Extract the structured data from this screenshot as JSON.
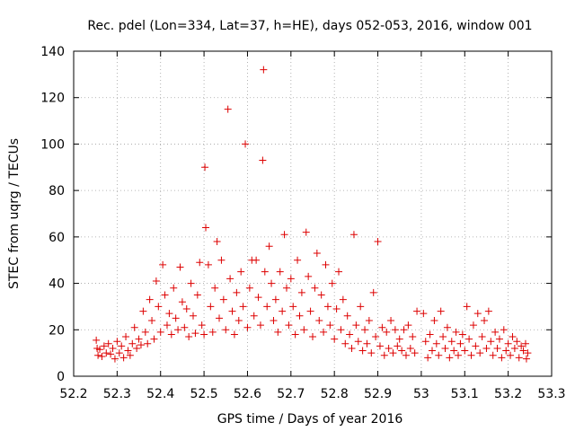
{
  "chart_data": {
    "type": "scatter",
    "title": "Rec. pdel (Lon=334, Lat=37, h=HE), days 052-053, 2016, window 001",
    "xlabel": "GPS time / Days of year 2016",
    "ylabel": "STEC from uqrg / TECUs",
    "xlim": [
      52.2,
      53.3
    ],
    "ylim": [
      0,
      140
    ],
    "xticks": [
      52.2,
      52.3,
      52.4,
      52.5,
      52.6,
      52.7,
      52.8,
      52.9,
      53,
      53.1,
      53.2,
      53.3
    ],
    "xtick_labels": [
      "52.2",
      "52.3",
      "52.4",
      "52.5",
      "52.6",
      "52.7",
      "52.8",
      "52.9",
      "53",
      "53.1",
      "53.2",
      "53.3"
    ],
    "yticks": [
      0,
      20,
      40,
      60,
      80,
      100,
      120,
      140
    ],
    "ytick_labels": [
      "0",
      "20",
      "40",
      "60",
      "80",
      "100",
      "120",
      "140"
    ],
    "grid": true,
    "marker": "+",
    "color": "#dd0000",
    "series": [
      {
        "name": "STEC",
        "points": [
          [
            52.252,
            15.5
          ],
          [
            52.254,
            12.0
          ],
          [
            52.256,
            9.0
          ],
          [
            52.26,
            11.5
          ],
          [
            52.265,
            8.5
          ],
          [
            52.27,
            13.0
          ],
          [
            52.275,
            10.0
          ],
          [
            52.28,
            14.0
          ],
          [
            52.285,
            9.5
          ],
          [
            52.29,
            12.0
          ],
          [
            52.295,
            7.5
          ],
          [
            52.3,
            15.0
          ],
          [
            52.305,
            10.0
          ],
          [
            52.31,
            13.0
          ],
          [
            52.315,
            8.0
          ],
          [
            52.32,
            17.0
          ],
          [
            52.325,
            11.0
          ],
          [
            52.33,
            9.0
          ],
          [
            52.335,
            14.0
          ],
          [
            52.34,
            21.0
          ],
          [
            52.345,
            12.0
          ],
          [
            52.35,
            16.0
          ],
          [
            52.355,
            13.5
          ],
          [
            52.36,
            28.0
          ],
          [
            52.365,
            19.0
          ],
          [
            52.37,
            14.0
          ],
          [
            52.375,
            33.0
          ],
          [
            52.38,
            24.0
          ],
          [
            52.385,
            16.0
          ],
          [
            52.39,
            41.0
          ],
          [
            52.395,
            30.0
          ],
          [
            52.4,
            19.0
          ],
          [
            52.405,
            48.0
          ],
          [
            52.41,
            35.0
          ],
          [
            52.415,
            22.0
          ],
          [
            52.42,
            27.0
          ],
          [
            52.425,
            18.0
          ],
          [
            52.43,
            38.0
          ],
          [
            52.435,
            25.0
          ],
          [
            52.44,
            20.0
          ],
          [
            52.445,
            47.0
          ],
          [
            52.45,
            32.0
          ],
          [
            52.455,
            21.0
          ],
          [
            52.46,
            29.0
          ],
          [
            52.465,
            17.0
          ],
          [
            52.47,
            40.0
          ],
          [
            52.475,
            26.0
          ],
          [
            52.48,
            18.5
          ],
          [
            52.485,
            35.0
          ],
          [
            52.49,
            49.0
          ],
          [
            52.495,
            22.0
          ],
          [
            52.5,
            18.0
          ],
          [
            52.502,
            90.0
          ],
          [
            52.504,
            64.0
          ],
          [
            52.51,
            48.0
          ],
          [
            52.515,
            30.0
          ],
          [
            52.52,
            19.0
          ],
          [
            52.525,
            38.0
          ],
          [
            52.53,
            58.0
          ],
          [
            52.535,
            25.0
          ],
          [
            52.54,
            50.0
          ],
          [
            52.545,
            33.0
          ],
          [
            52.55,
            20.0
          ],
          [
            52.555,
            115.0
          ],
          [
            52.56,
            42.0
          ],
          [
            52.565,
            28.0
          ],
          [
            52.57,
            18.0
          ],
          [
            52.575,
            36.0
          ],
          [
            52.58,
            24.0
          ],
          [
            52.585,
            45.0
          ],
          [
            52.59,
            30.0
          ],
          [
            52.595,
            100.0
          ],
          [
            52.6,
            21.0
          ],
          [
            52.605,
            38.0
          ],
          [
            52.61,
            50.0
          ],
          [
            52.615,
            26.0
          ],
          [
            52.62,
            50.0
          ],
          [
            52.625,
            34.0
          ],
          [
            52.63,
            22.0
          ],
          [
            52.635,
            93.0
          ],
          [
            52.637,
            132.0
          ],
          [
            52.64,
            45.0
          ],
          [
            52.645,
            30.0
          ],
          [
            52.65,
            56.0
          ],
          [
            52.655,
            40.0
          ],
          [
            52.66,
            24.0
          ],
          [
            52.665,
            33.0
          ],
          [
            52.67,
            19.0
          ],
          [
            52.675,
            45.0
          ],
          [
            52.68,
            28.0
          ],
          [
            52.685,
            61.0
          ],
          [
            52.69,
            38.0
          ],
          [
            52.695,
            22.0
          ],
          [
            52.7,
            42.0
          ],
          [
            52.705,
            30.0
          ],
          [
            52.71,
            18.0
          ],
          [
            52.715,
            50.0
          ],
          [
            52.72,
            26.0
          ],
          [
            52.725,
            36.0
          ],
          [
            52.73,
            20.0
          ],
          [
            52.735,
            62.0
          ],
          [
            52.74,
            43.0
          ],
          [
            52.745,
            28.0
          ],
          [
            52.75,
            17.0
          ],
          [
            52.755,
            38.0
          ],
          [
            52.76,
            53.0
          ],
          [
            52.765,
            24.0
          ],
          [
            52.77,
            35.0
          ],
          [
            52.775,
            19.0
          ],
          [
            52.78,
            48.0
          ],
          [
            52.785,
            30.0
          ],
          [
            52.79,
            22.0
          ],
          [
            52.795,
            40.0
          ],
          [
            52.8,
            16.0
          ],
          [
            52.805,
            29.0
          ],
          [
            52.81,
            45.0
          ],
          [
            52.815,
            20.0
          ],
          [
            52.82,
            33.0
          ],
          [
            52.825,
            14.0
          ],
          [
            52.83,
            26.0
          ],
          [
            52.835,
            18.0
          ],
          [
            52.84,
            12.0
          ],
          [
            52.845,
            61.0
          ],
          [
            52.85,
            22.0
          ],
          [
            52.855,
            15.0
          ],
          [
            52.86,
            30.0
          ],
          [
            52.865,
            11.0
          ],
          [
            52.87,
            20.0
          ],
          [
            52.875,
            14.0
          ],
          [
            52.88,
            24.0
          ],
          [
            52.885,
            10.0
          ],
          [
            52.89,
            36.0
          ],
          [
            52.895,
            17.0
          ],
          [
            52.9,
            58.0
          ],
          [
            52.905,
            13.0
          ],
          [
            52.91,
            21.0
          ],
          [
            52.915,
            9.0
          ],
          [
            52.92,
            19.0
          ],
          [
            52.925,
            12.0
          ],
          [
            52.93,
            24.0
          ],
          [
            52.935,
            10.0
          ],
          [
            52.94,
            20.0
          ],
          [
            52.945,
            13.0
          ],
          [
            52.95,
            16.0
          ],
          [
            52.955,
            11.0
          ],
          [
            52.96,
            20.0
          ],
          [
            52.965,
            9.0
          ],
          [
            52.97,
            22.0
          ],
          [
            52.975,
            12.0
          ],
          [
            52.98,
            17.0
          ],
          [
            52.985,
            10.0
          ],
          [
            52.99,
            28.0
          ],
          [
            53.005,
            27.0
          ],
          [
            53.01,
            15.0
          ],
          [
            53.015,
            8.0
          ],
          [
            53.02,
            18.0
          ],
          [
            53.025,
            11.0
          ],
          [
            53.03,
            24.0
          ],
          [
            53.035,
            14.0
          ],
          [
            53.04,
            9.0
          ],
          [
            53.045,
            28.0
          ],
          [
            53.05,
            17.0
          ],
          [
            53.055,
            12.0
          ],
          [
            53.06,
            21.0
          ],
          [
            53.065,
            8.0
          ],
          [
            53.07,
            15.0
          ],
          [
            53.075,
            11.0
          ],
          [
            53.08,
            19.0
          ],
          [
            53.085,
            9.0
          ],
          [
            53.09,
            14.0
          ],
          [
            53.095,
            18.0
          ],
          [
            53.1,
            11.0
          ],
          [
            53.105,
            30.0
          ],
          [
            53.11,
            16.0
          ],
          [
            53.115,
            9.0
          ],
          [
            53.12,
            22.0
          ],
          [
            53.125,
            13.0
          ],
          [
            53.13,
            27.0
          ],
          [
            53.135,
            10.0
          ],
          [
            53.14,
            17.0
          ],
          [
            53.145,
            24.0
          ],
          [
            53.15,
            12.0
          ],
          [
            53.155,
            28.0
          ],
          [
            53.16,
            15.0
          ],
          [
            53.165,
            9.0
          ],
          [
            53.17,
            19.0
          ],
          [
            53.175,
            12.0
          ],
          [
            53.18,
            16.0
          ],
          [
            53.185,
            8.0
          ],
          [
            53.19,
            20.0
          ],
          [
            53.195,
            11.0
          ],
          [
            53.2,
            14.0
          ],
          [
            53.205,
            9.0
          ],
          [
            53.21,
            17.0
          ],
          [
            53.215,
            12.0
          ],
          [
            53.22,
            15.0
          ],
          [
            53.225,
            8.0
          ],
          [
            53.23,
            13.0
          ],
          [
            53.235,
            11.0
          ],
          [
            53.24,
            14.0
          ],
          [
            53.242,
            7.5
          ],
          [
            53.245,
            10.0
          ]
        ]
      }
    ]
  }
}
